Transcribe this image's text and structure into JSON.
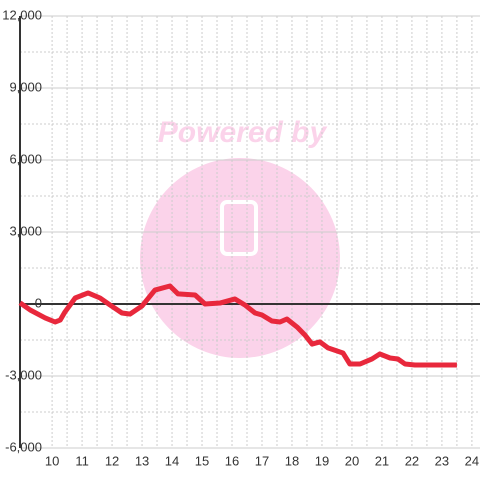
{
  "watermark": "Powered by",
  "chart_data": {
    "type": "line",
    "color": "#e8283c",
    "x": [
      8.93,
      9.27,
      9.77,
      10.1,
      10.27,
      10.43,
      10.77,
      11.2,
      11.6,
      11.93,
      12.33,
      12.6,
      13.0,
      13.43,
      13.93,
      14.2,
      14.77,
      15.1,
      15.6,
      16.1,
      16.43,
      16.77,
      17.0,
      17.33,
      17.6,
      17.83,
      18.17,
      18.43,
      18.67,
      18.93,
      19.2,
      19.7,
      19.93,
      20.27,
      20.67,
      20.93,
      21.27,
      21.53,
      21.77,
      22.1,
      23.5
    ],
    "values": [
      50,
      -250,
      -580,
      -750,
      -670,
      -330,
      250,
      460,
      250,
      -40,
      -375,
      -420,
      -80,
      580,
      750,
      420,
      375,
      0,
      40,
      210,
      -40,
      -375,
      -460,
      -710,
      -750,
      -625,
      -960,
      -1290,
      -1670,
      -1580,
      -1830,
      -2040,
      -2500,
      -2500,
      -2290,
      -2080,
      -2250,
      -2290,
      -2500,
      -2540,
      -2540
    ],
    "xlim": [
      8.93,
      24.27
    ],
    "ylim": [
      -6000,
      12000
    ],
    "xticks": [
      10,
      11,
      12,
      13,
      14,
      15,
      16,
      17,
      18,
      19,
      20,
      21,
      22,
      23,
      24
    ],
    "yticks": [
      {
        "value": 12000,
        "label": "12,000"
      },
      {
        "value": 9000,
        "label": "9,000"
      },
      {
        "value": 6000,
        "label": "6,000"
      },
      {
        "value": 3000,
        "label": "3,000"
      },
      0,
      {
        "value": -3000,
        "label": "-3,000"
      },
      {
        "value": -6000,
        "label": "-6,000"
      }
    ],
    "grid": true
  }
}
